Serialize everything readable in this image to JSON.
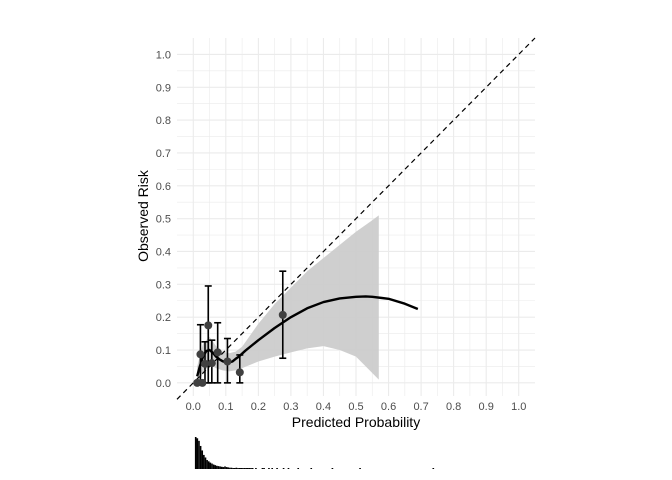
{
  "chart_data": {
    "type": "scatter",
    "title": "",
    "xlabel": "Predicted Probability",
    "ylabel": "Observed Risk",
    "xlim": [
      -0.05,
      1.05
    ],
    "ylim": [
      -0.04,
      1.05
    ],
    "xticks": [
      "0.0",
      "0.1",
      "0.2",
      "0.3",
      "0.4",
      "0.5",
      "0.6",
      "0.7",
      "0.8",
      "0.9",
      "1.0"
    ],
    "yticks": [
      "0.0",
      "0.1",
      "0.2",
      "0.3",
      "0.4",
      "0.5",
      "0.6",
      "0.7",
      "0.8",
      "0.9",
      "1.0"
    ],
    "grid": true,
    "reference_line": {
      "style": "dashed",
      "from": [
        -0.05,
        -0.05
      ],
      "to": [
        1.05,
        1.05
      ]
    },
    "grouped_points": [
      {
        "x": 0.012,
        "y": 0.0,
        "lo": 0.0,
        "hi": 0.0
      },
      {
        "x": 0.022,
        "y": 0.087,
        "lo": 0.0,
        "hi": 0.177
      },
      {
        "x": 0.028,
        "y": 0.0,
        "lo": 0.0,
        "hi": 0.0
      },
      {
        "x": 0.036,
        "y": 0.058,
        "lo": 0.0,
        "hi": 0.125
      },
      {
        "x": 0.046,
        "y": 0.175,
        "lo": 0.0,
        "hi": 0.295
      },
      {
        "x": 0.057,
        "y": 0.06,
        "lo": 0.0,
        "hi": 0.13
      },
      {
        "x": 0.075,
        "y": 0.093,
        "lo": 0.0,
        "hi": 0.183
      },
      {
        "x": 0.105,
        "y": 0.065,
        "lo": 0.0,
        "hi": 0.135
      },
      {
        "x": 0.143,
        "y": 0.032,
        "lo": 0.0,
        "hi": 0.085
      },
      {
        "x": 0.275,
        "y": 0.207,
        "lo": 0.075,
        "hi": 0.34
      }
    ],
    "smooth_curve": {
      "x": [
        0.012,
        0.02,
        0.03,
        0.04,
        0.05,
        0.06,
        0.07,
        0.08,
        0.09,
        0.1,
        0.11,
        0.12,
        0.13,
        0.14,
        0.16,
        0.2,
        0.25,
        0.3,
        0.35,
        0.4,
        0.45,
        0.5,
        0.53,
        0.55,
        0.6,
        0.65,
        0.69
      ],
      "y": [
        0.02,
        0.05,
        0.08,
        0.097,
        0.1,
        0.092,
        0.08,
        0.072,
        0.066,
        0.063,
        0.062,
        0.065,
        0.073,
        0.08,
        0.098,
        0.13,
        0.167,
        0.2,
        0.227,
        0.246,
        0.257,
        0.262,
        0.263,
        0.262,
        0.256,
        0.241,
        0.225
      ]
    },
    "confidence_band": {
      "x": [
        0.012,
        0.03,
        0.05,
        0.07,
        0.09,
        0.11,
        0.13,
        0.15,
        0.2,
        0.25,
        0.3,
        0.35,
        0.4,
        0.45,
        0.5,
        0.55,
        0.57
      ],
      "lower": [
        -0.01,
        0.03,
        0.055,
        0.045,
        0.038,
        0.035,
        0.038,
        0.045,
        0.065,
        0.08,
        0.093,
        0.105,
        0.112,
        0.1,
        0.08,
        0.03,
        0.01
      ],
      "upper": [
        0.05,
        0.12,
        0.14,
        0.112,
        0.095,
        0.09,
        0.095,
        0.11,
        0.18,
        0.24,
        0.29,
        0.34,
        0.38,
        0.42,
        0.46,
        0.495,
        0.51
      ]
    },
    "histogram": {
      "bin_width": 0.005,
      "x_start": 0.005,
      "counts": [
        100,
        96,
        88,
        72,
        58,
        44,
        36,
        28,
        24,
        20,
        17,
        14,
        12,
        10,
        9,
        8,
        7,
        6,
        8,
        6,
        5,
        4,
        4,
        3,
        3,
        4,
        3,
        2,
        2,
        2,
        2,
        1,
        2,
        1,
        1,
        1,
        0,
        1,
        0,
        0,
        0,
        1,
        1,
        0,
        0,
        1,
        0,
        1,
        0,
        0,
        1,
        0,
        0,
        0,
        1,
        0,
        0,
        1,
        0,
        0,
        0,
        0,
        0,
        1,
        0,
        0,
        0,
        0,
        0,
        0,
        0,
        1,
        0,
        0,
        0,
        0,
        0,
        0,
        0,
        0,
        0,
        0,
        0,
        0,
        1,
        0,
        0,
        0,
        0,
        0,
        0,
        0,
        0,
        0,
        0,
        0,
        0,
        0,
        0,
        0,
        0,
        1,
        0,
        0,
        0,
        0,
        0,
        0,
        0,
        0,
        0,
        0,
        0,
        0,
        0,
        0,
        0,
        0,
        0,
        0,
        0,
        0,
        0,
        0,
        0,
        0,
        0,
        0,
        0,
        0,
        0,
        0,
        0,
        0,
        0,
        0,
        0,
        0,
        0,
        0,
        0,
        0,
        0,
        0,
        0,
        0,
        1
      ]
    },
    "colors": {
      "grid": "#ebebeb",
      "point": "#404040",
      "curve": "#000000",
      "band": "#cccccc",
      "reference": "#000000",
      "histogram": "#000000"
    }
  }
}
